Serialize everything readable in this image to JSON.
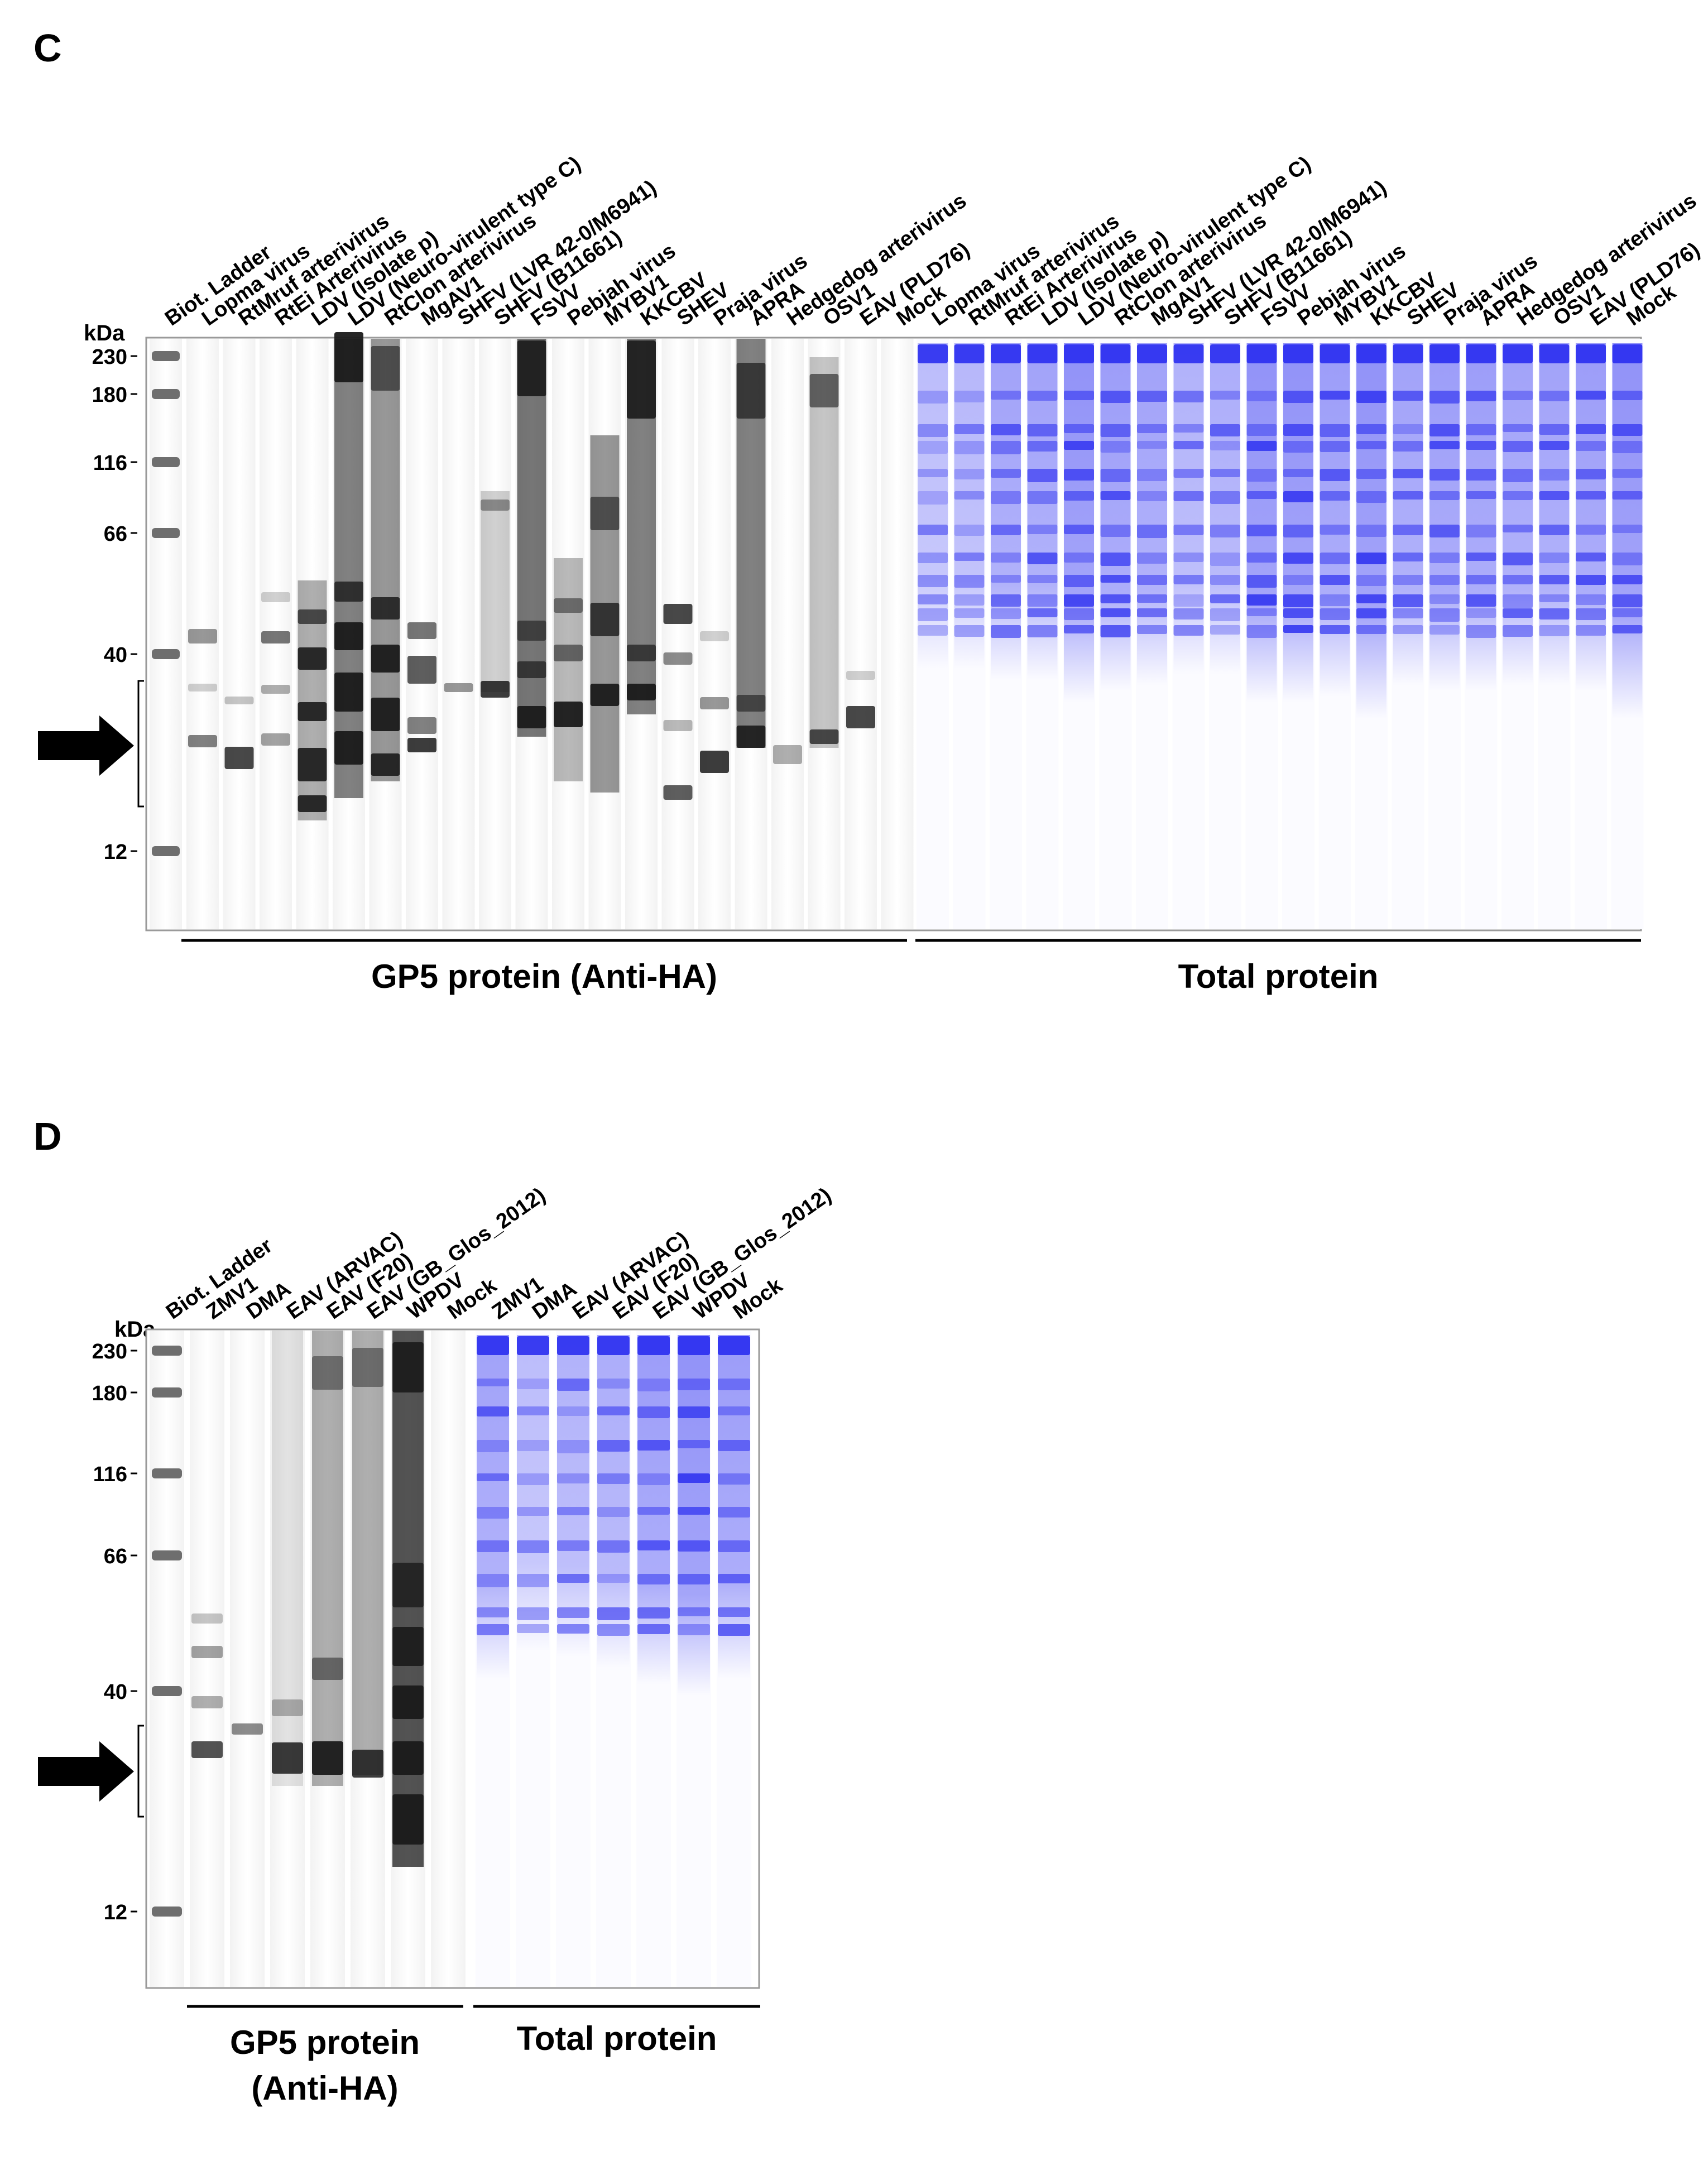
{
  "panel_c": {
    "letter": "C",
    "unit_label": "kDa",
    "ladder_label": "Biot. Ladder",
    "markers": [
      "230",
      "180",
      "116",
      "66",
      "40",
      "12"
    ],
    "gp5_lanes": [
      "Lopma virus",
      "RtMruf arterivirus",
      "RtEi Arterivirus",
      "LDV (Isolate p)",
      "LDV (Neuro-virulent type C)",
      "RtClon arterivirus",
      "MgAV1",
      "SHFV (LVR 42-0/M6941)",
      "SHFV (B11661)",
      "FSVV",
      "Pebjah virus",
      "MYBV1",
      "KKCBV",
      "SHEV",
      "Praja virus",
      "APRA",
      "Hedgedog arterivirus",
      "OSV1",
      "EAV (PLD76)",
      "Mock"
    ],
    "total_lanes": [
      "Lopma virus",
      "RtMruf arterivirus",
      "RtEi Arterivirus",
      "LDV (Isolate p)",
      "LDV (Neuro-virulent type C)",
      "RtClon arterivirus",
      "MgAV1",
      "SHFV (LVR 42-0/M6941)",
      "SHFV (B11661)",
      "FSVV",
      "Pebjah virus",
      "MYBV1",
      "KKCBV",
      "SHEV",
      "Praja virus",
      "APRA",
      "Hedgedog arterivirus",
      "OSV1",
      "EAV (PLD76)",
      "Mock"
    ],
    "gp5_label": "GP5 protein (Anti-HA)",
    "total_label": "Total protein"
  },
  "panel_d": {
    "letter": "D",
    "unit_label": "kDa",
    "ladder_label": "Biot. Ladder",
    "markers": [
      "230",
      "180",
      "116",
      "66",
      "40",
      "12"
    ],
    "gp5_lanes": [
      "ZMV1",
      "DMA",
      "EAV (ARVAC)",
      "EAV (F20)",
      "EAV (GB_Glos_2012)",
      "WPDV",
      "Mock"
    ],
    "total_lanes": [
      "ZMV1",
      "DMA",
      "EAV (ARVAC)",
      "EAV (F20)",
      "EAV (GB_Glos_2012)",
      "WPDV",
      "Mock"
    ],
    "gp5_label_line1": "GP5 protein",
    "gp5_label_line2": "(Anti-HA)",
    "total_label": "Total protein"
  },
  "colors": {
    "total_stain": "#2a2df0",
    "gp5_stain": "#1a1a1a",
    "ladder": "#6e6e6e"
  }
}
